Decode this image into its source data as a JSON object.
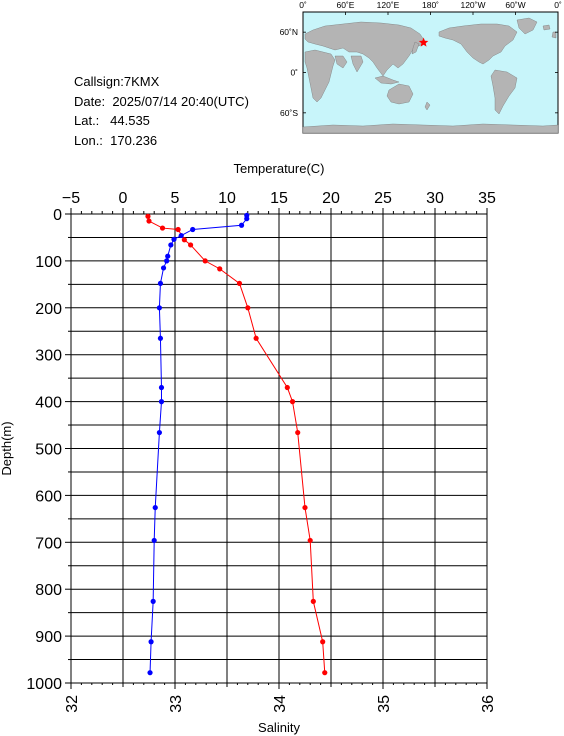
{
  "station": {
    "callsign_label": "Callsign:",
    "callsign": "7KMX",
    "date_label": "Date:",
    "date": "2025/07/14 20:40(UTC)",
    "lat_label": "Lat.:",
    "lat": "44.535",
    "lon_label": "Lon.:",
    "lon": "170.236"
  },
  "map": {
    "lon_ticks": [
      "0˚",
      "60˚E",
      "120˚E",
      "180˚",
      "120˚W",
      "60˚W",
      "0˚"
    ],
    "lat_ticks": [
      "60˚N",
      "0˚",
      "60˚S"
    ],
    "ocean_color": "#c8f5fa",
    "land_color": "#b4b4b4",
    "marker_color": "#ff0000",
    "marker_icon": "star-icon",
    "marker_position": {
      "lon": 170.236,
      "lat": 44.535
    }
  },
  "chart_data": {
    "type": "line",
    "ylabel": "Depth(m)",
    "ylim": [
      0,
      1000
    ],
    "y_inverted": true,
    "y_ticks": [
      0,
      100,
      200,
      300,
      400,
      500,
      600,
      700,
      800,
      900,
      1000
    ],
    "grid": true,
    "top_axis": {
      "label": "Temperature(C)",
      "range": [
        -5,
        35
      ],
      "ticks": [
        -5,
        0,
        5,
        10,
        15,
        20,
        25,
        30,
        35
      ]
    },
    "bottom_axis": {
      "label": "Salinity",
      "range": [
        32,
        36
      ],
      "ticks": [
        32,
        33,
        34,
        35,
        36
      ]
    },
    "series": [
      {
        "axis": "temperature",
        "color": "#ff0000",
        "points": [
          {
            "x": 2.4,
            "depth": 5
          },
          {
            "x": 2.5,
            "depth": 15
          },
          {
            "x": 3.8,
            "depth": 30
          },
          {
            "x": 5.3,
            "depth": 33
          },
          {
            "x": 5.9,
            "depth": 55
          },
          {
            "x": 6.5,
            "depth": 66
          },
          {
            "x": 7.9,
            "depth": 100
          },
          {
            "x": 9.3,
            "depth": 117
          },
          {
            "x": 11.2,
            "depth": 148
          },
          {
            "x": 12.0,
            "depth": 200
          },
          {
            "x": 12.8,
            "depth": 265
          },
          {
            "x": 15.8,
            "depth": 370
          },
          {
            "x": 16.3,
            "depth": 400
          },
          {
            "x": 16.8,
            "depth": 466
          },
          {
            "x": 17.5,
            "depth": 626
          },
          {
            "x": 18.0,
            "depth": 696
          },
          {
            "x": 18.3,
            "depth": 826
          },
          {
            "x": 19.2,
            "depth": 912
          },
          {
            "x": 19.4,
            "depth": 978
          }
        ]
      },
      {
        "axis": "salinity",
        "color": "#0000ff",
        "points": [
          {
            "x": 33.69,
            "depth": 3
          },
          {
            "x": 33.69,
            "depth": 10
          },
          {
            "x": 33.64,
            "depth": 24
          },
          {
            "x": 33.17,
            "depth": 33
          },
          {
            "x": 33.06,
            "depth": 46
          },
          {
            "x": 32.99,
            "depth": 54
          },
          {
            "x": 32.96,
            "depth": 66
          },
          {
            "x": 32.93,
            "depth": 90
          },
          {
            "x": 32.92,
            "depth": 100
          },
          {
            "x": 32.89,
            "depth": 115
          },
          {
            "x": 32.86,
            "depth": 148
          },
          {
            "x": 32.85,
            "depth": 200
          },
          {
            "x": 32.86,
            "depth": 265
          },
          {
            "x": 32.87,
            "depth": 370
          },
          {
            "x": 32.87,
            "depth": 400
          },
          {
            "x": 32.85,
            "depth": 466
          },
          {
            "x": 32.81,
            "depth": 626
          },
          {
            "x": 32.8,
            "depth": 696
          },
          {
            "x": 32.79,
            "depth": 826
          },
          {
            "x": 32.77,
            "depth": 912
          },
          {
            "x": 32.76,
            "depth": 978
          }
        ]
      }
    ]
  }
}
